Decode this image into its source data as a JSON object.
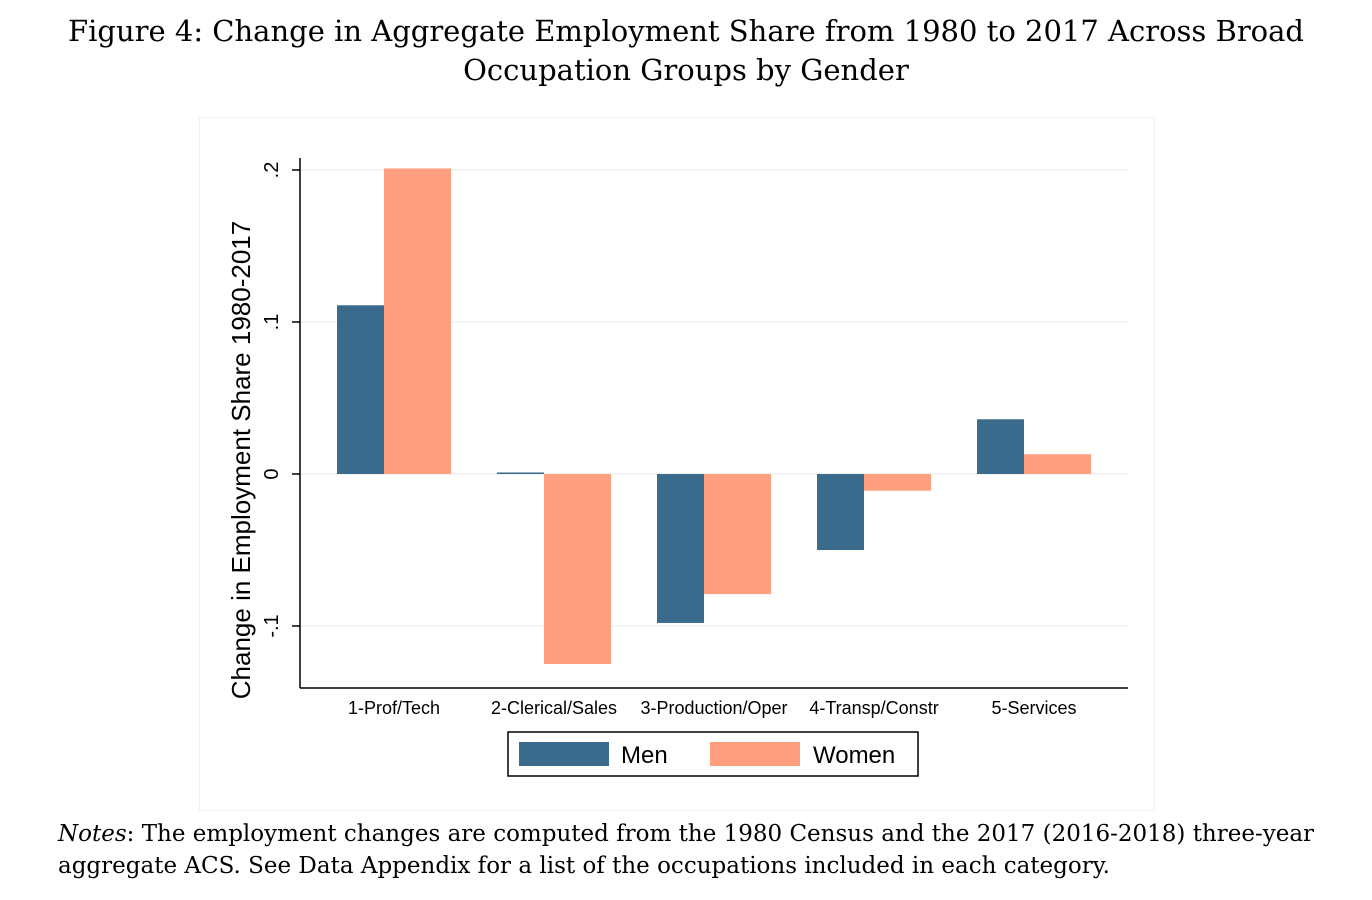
{
  "figure": {
    "title": "Figure 4: Change in Aggregate Employment Share from 1980 to 2017 Across Broad Occupation Groups by Gender"
  },
  "chart_data": {
    "type": "bar",
    "categories": [
      "1-Prof/Tech",
      "2-Clerical/Sales",
      "3-Production/Oper",
      "4-Transp/Constr",
      "5-Services"
    ],
    "series": [
      {
        "name": "Men",
        "values": [
          0.111,
          0.001,
          -0.098,
          -0.05,
          0.036
        ],
        "color": "#3a6a8c"
      },
      {
        "name": "Women",
        "values": [
          0.201,
          -0.125,
          -0.079,
          -0.011,
          0.013
        ],
        "color": "#ff9f7f"
      }
    ],
    "ylabel": "Change in Employment Share 1980-2017",
    "xlabel": "",
    "ylim": [
      -0.14,
      0.2
    ],
    "yticks": [
      -0.1,
      0,
      0.1,
      0.2
    ],
    "ytick_labels": [
      "-.1",
      "0",
      ".1",
      ".2"
    ],
    "grid": true,
    "legend": "bottom-center"
  },
  "notes": {
    "label": "Notes",
    "text": ": The employment changes are computed from the 1980 Census and the 2017 (2016-2018) three-year aggregate ACS. See Data Appendix for a list of the occupations included in each category."
  }
}
